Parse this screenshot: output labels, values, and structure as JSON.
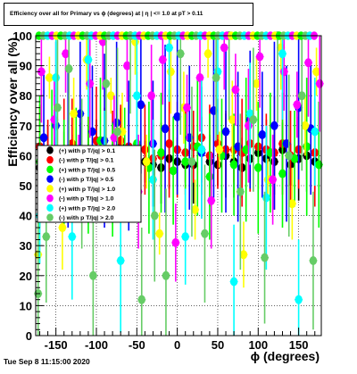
{
  "chart_data": {
    "type": "scatter",
    "title": "Efficiency over all for Primary vs ϕ (degrees) at | η | <= 1.0 at pT > 0.11",
    "xlabel": "ϕ (degrees)",
    "ylabel": "Efficiency over all (%)",
    "xlim": [
      -175,
      178
    ],
    "ylim": [
      0,
      100
    ],
    "x_ticks": [
      -150,
      -100,
      -50,
      0,
      50,
      100,
      150
    ],
    "x_tick_labels": [
      "-150",
      "-100",
      "-50",
      "0",
      "50",
      "100",
      "150"
    ],
    "y_ticks": [
      0,
      10,
      20,
      30,
      40,
      50,
      60,
      70,
      80,
      90,
      100
    ],
    "y_tick_labels": [
      "0",
      "10",
      "20",
      "30",
      "40",
      "50",
      "60",
      "70",
      "80",
      "90",
      "100"
    ],
    "grid": true,
    "legend_position": "center-left",
    "series": [
      {
        "name": "(+) with p T/|q| > 0.1",
        "color": "#000000",
        "x": [
          -170,
          -160,
          -150,
          -140,
          -130,
          -120,
          -110,
          -100,
          -90,
          -80,
          -70,
          -60,
          -50,
          -40,
          -30,
          -20,
          -10,
          0,
          10,
          20,
          30,
          40,
          50,
          60,
          70,
          80,
          90,
          100,
          110,
          120,
          130,
          140,
          150,
          160,
          170
        ],
        "y": [
          56,
          57,
          55,
          59,
          60,
          57,
          58,
          62,
          57,
          58,
          63,
          61,
          55,
          58,
          57,
          56,
          59,
          58,
          57,
          57,
          62,
          58,
          57,
          60,
          58,
          56,
          59,
          61,
          59,
          58,
          62,
          57,
          59,
          60,
          58
        ]
      },
      {
        "name": "(-) with p T/|q| > 0.1",
        "color": "#ff0000",
        "x": [
          -170,
          -160,
          -150,
          -140,
          -130,
          -120,
          -110,
          -100,
          -90,
          -80,
          -70,
          -60,
          -50,
          -40,
          -30,
          -20,
          -10,
          0,
          10,
          20,
          30,
          40,
          50,
          60,
          70,
          80,
          90,
          100,
          110,
          120,
          130,
          140,
          150,
          160,
          170
        ],
        "y": [
          63,
          60,
          58,
          62,
          64,
          61,
          62,
          65,
          60,
          61,
          65,
          63,
          60,
          62,
          59,
          60,
          64,
          62,
          61,
          63,
          66,
          60,
          64,
          62,
          62,
          61,
          64,
          63,
          62,
          61,
          64,
          60,
          62,
          63,
          61
        ]
      },
      {
        "name": "(+) with p T/|q| > 0.5",
        "color": "#00ff00",
        "x": [
          -170,
          -155,
          -140,
          -125,
          -110,
          -95,
          -80,
          -65,
          -50,
          -35,
          -20,
          -5,
          10,
          25,
          40,
          55,
          70,
          85,
          100,
          115,
          130,
          145,
          160,
          175
        ],
        "y": [
          58,
          62,
          54,
          60,
          57,
          65,
          52,
          59,
          64,
          56,
          61,
          55,
          58,
          63,
          53,
          60,
          57,
          62,
          56,
          61,
          54,
          59,
          63,
          57
        ]
      },
      {
        "name": "(-) with p T/|q| > 0.5",
        "color": "#0000ff",
        "x": [
          -165,
          -150,
          -135,
          -120,
          -105,
          -90,
          -75,
          -60,
          -45,
          -30,
          -15,
          0,
          15,
          30,
          45,
          60,
          75,
          90,
          105,
          120,
          135,
          150,
          165
        ],
        "y": [
          66,
          70,
          62,
          74,
          68,
          65,
          71,
          60,
          77,
          64,
          69,
          73,
          66,
          61,
          75,
          68,
          63,
          72,
          67,
          70,
          64,
          76,
          69
        ]
      },
      {
        "name": "(+) with p T/|q| > 1.0",
        "color": "#ffff00",
        "x": [
          -172,
          -158,
          -142,
          -128,
          -112,
          -98,
          -82,
          -68,
          -52,
          -38,
          -22,
          -8,
          8,
          22,
          38,
          52,
          68,
          82,
          98,
          112,
          128,
          142,
          158,
          172
        ],
        "y": [
          27,
          86,
          36,
          74,
          92,
          46,
          80,
          68,
          98,
          58,
          34,
          88,
          76,
          42,
          94,
          62,
          72,
          27,
          84,
          52,
          96,
          44,
          70,
          88
        ]
      },
      {
        "name": "(-) with p T/|q| > 1.0",
        "color": "#ff00ff",
        "x": [
          -168,
          -152,
          -138,
          -122,
          -108,
          -92,
          -78,
          -62,
          -48,
          -32,
          -18,
          -2,
          12,
          28,
          42,
          58,
          72,
          88,
          102,
          118,
          132,
          148,
          162,
          176
        ],
        "y": [
          88,
          72,
          94,
          56,
          84,
          98,
          66,
          90,
          48,
          80,
          92,
          31,
          76,
          86,
          45,
          96,
          82,
          70,
          93,
          52,
          88,
          77,
          91,
          84
        ]
      },
      {
        "name": "(+) with p T/|q| > 2.0",
        "color": "#00ffff",
        "x": [
          -170,
          -150,
          -130,
          -110,
          -90,
          -70,
          -50,
          -30,
          -10,
          10,
          30,
          50,
          70,
          90,
          110,
          130,
          150,
          170
        ],
        "y": [
          40,
          86,
          33,
          92,
          58,
          25,
          80,
          52,
          96,
          33,
          62,
          88,
          18,
          74,
          46,
          94,
          12,
          68
        ]
      },
      {
        "name": "(-) with p T/|q| > 2.0",
        "color": "#66cc66",
        "x": [
          -172,
          -162,
          -148,
          -134,
          -118,
          -104,
          -88,
          -74,
          -58,
          -44,
          -28,
          -14,
          4,
          18,
          34,
          48,
          64,
          78,
          94,
          108,
          124,
          138,
          154,
          168
        ],
        "y": [
          14,
          33,
          76,
          89,
          54,
          20,
          84,
          68,
          100,
          12,
          40,
          20,
          94,
          58,
          34,
          86,
          100,
          48,
          72,
          26,
          100,
          60,
          80,
          25
        ]
      }
    ],
    "top_row_marker_value": 100
  },
  "page": {
    "footer": "Tue Sep  8 11:15:00 2020"
  }
}
